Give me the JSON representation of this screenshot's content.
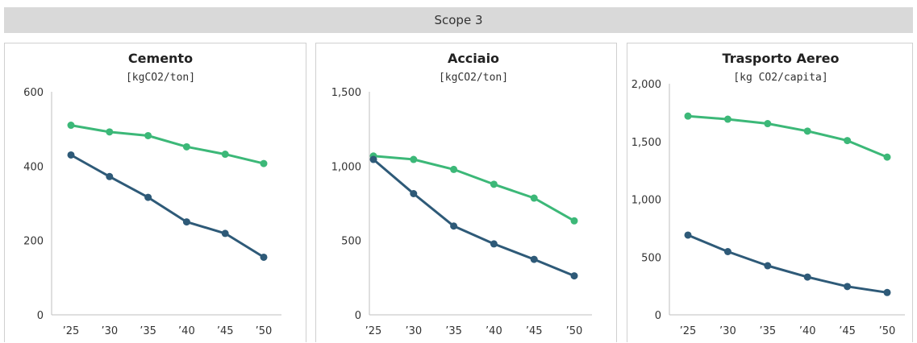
{
  "header": {
    "title": "Scope 3"
  },
  "chart_data": [
    {
      "type": "line",
      "title": "Cemento",
      "subtitle": "[kgCO2/ton]",
      "categories": [
        "’25",
        "’30",
        "’35",
        "’40",
        "’45",
        "’50"
      ],
      "ylim": [
        0,
        600
      ],
      "yticks": [
        "0",
        "200",
        "400",
        "600"
      ],
      "ytick_values": [
        0,
        200,
        400,
        600
      ],
      "series": [
        {
          "color": "#3cb878",
          "values": [
            510,
            492,
            482,
            452,
            432,
            407
          ]
        },
        {
          "color": "#2e5a78",
          "values": [
            430,
            372,
            316,
            250,
            219,
            155
          ]
        }
      ]
    },
    {
      "type": "line",
      "title": "Acciaio",
      "subtitle": "[kgCO2/ton]",
      "categories": [
        "’25",
        "’30",
        "’35",
        "’40",
        "’45",
        "’50"
      ],
      "ylim": [
        0,
        1500
      ],
      "yticks": [
        "0",
        "500",
        "1,000",
        "1,500"
      ],
      "ytick_values": [
        0,
        500,
        1000,
        1500
      ],
      "series": [
        {
          "color": "#3cb878",
          "values": [
            1068,
            1045,
            978,
            878,
            785,
            632
          ]
        },
        {
          "color": "#2e5a78",
          "values": [
            1045,
            815,
            597,
            477,
            373,
            262
          ]
        }
      ]
    },
    {
      "type": "line",
      "title": "Trasporto Aereo",
      "subtitle": "[kg CO2/capita]",
      "categories": [
        "’25",
        "’30",
        "’35",
        "’40",
        "’45",
        "’50"
      ],
      "ylim": [
        0,
        2000
      ],
      "yticks": [
        "0",
        "500",
        "1,000",
        "1,500",
        "2,000"
      ],
      "ytick_values": [
        0,
        500,
        1000,
        1500,
        2000
      ],
      "series": [
        {
          "color": "#3cb878",
          "values": [
            1720,
            1693,
            1655,
            1590,
            1508,
            1365
          ]
        },
        {
          "color": "#2e5a78",
          "values": [
            690,
            547,
            425,
            327,
            245,
            193
          ]
        }
      ]
    }
  ]
}
